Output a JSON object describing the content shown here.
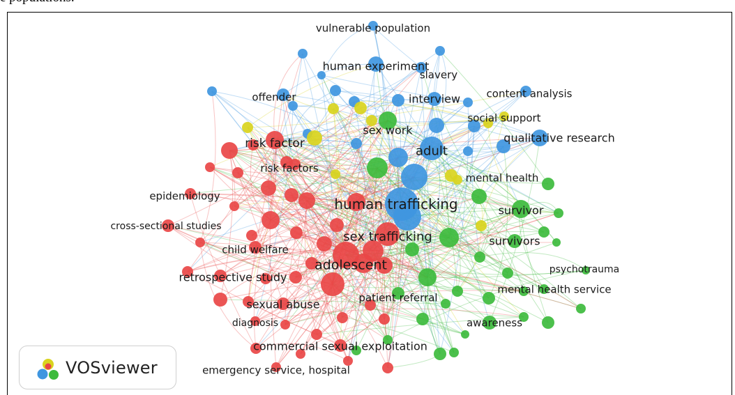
{
  "header_fragment": "e populations.",
  "logo": {
    "text": "VOSviewer",
    "icon": "vosviewer-logo-icon"
  },
  "colors": {
    "red": "#e94646",
    "green": "#3dbb3d",
    "blue": "#3f96e0",
    "yellow": "#d9d41e"
  },
  "network": {
    "nodes": [
      {
        "id": "human-trafficking",
        "label": "human trafficking",
        "cluster": "blue"
      },
      {
        "id": "adolescent",
        "label": "adolescent",
        "cluster": "red"
      },
      {
        "id": "sex-trafficking",
        "label": "sex trafficking",
        "cluster": "red"
      },
      {
        "id": "adult",
        "label": "adult",
        "cluster": "blue"
      },
      {
        "id": "sex-work",
        "label": "sex work",
        "cluster": "green"
      },
      {
        "id": "risk-factor",
        "label": "risk factor",
        "cluster": "red"
      },
      {
        "id": "risk-factors",
        "label": "risk factors",
        "cluster": "red"
      },
      {
        "id": "human-experiment",
        "label": "human experiment",
        "cluster": "blue"
      },
      {
        "id": "vulnerable-population",
        "label": "vulnerable population",
        "cluster": "blue"
      },
      {
        "id": "slavery",
        "label": "slavery",
        "cluster": "blue"
      },
      {
        "id": "offender",
        "label": "offender",
        "cluster": "blue"
      },
      {
        "id": "interview",
        "label": "interview",
        "cluster": "blue"
      },
      {
        "id": "content-analysis",
        "label": "content analysis",
        "cluster": "blue"
      },
      {
        "id": "social-support",
        "label": "social support",
        "cluster": "yellow"
      },
      {
        "id": "qualitative-research",
        "label": "qualitative research",
        "cluster": "blue"
      },
      {
        "id": "mental-health",
        "label": "mental health",
        "cluster": "yellow"
      },
      {
        "id": "survivor",
        "label": "survivor",
        "cluster": "green"
      },
      {
        "id": "survivors",
        "label": "survivors",
        "cluster": "green"
      },
      {
        "id": "psychotrauma",
        "label": "psychotrauma",
        "cluster": "green"
      },
      {
        "id": "mental-health-service",
        "label": "mental health service",
        "cluster": "green"
      },
      {
        "id": "awareness",
        "label": "awareness",
        "cluster": "green"
      },
      {
        "id": "patient-referral",
        "label": "patient referral",
        "cluster": "green"
      },
      {
        "id": "epidemiology",
        "label": "epidemiology",
        "cluster": "red"
      },
      {
        "id": "cross-sectional-studies",
        "label": "cross-sectional studies",
        "cluster": "red"
      },
      {
        "id": "child-welfare",
        "label": "child welfare",
        "cluster": "red"
      },
      {
        "id": "retrospective-study",
        "label": "retrospective study",
        "cluster": "red"
      },
      {
        "id": "sexual-abuse",
        "label": "sexual abuse",
        "cluster": "red"
      },
      {
        "id": "diagnosis",
        "label": "diagnosis",
        "cluster": "red"
      },
      {
        "id": "commercial-sexual-exploitation",
        "label": "commercial sexual exploitation",
        "cluster": "red"
      },
      {
        "id": "emergency-service-hospital",
        "label": "emergency service, hospital",
        "cluster": "red"
      }
    ]
  }
}
